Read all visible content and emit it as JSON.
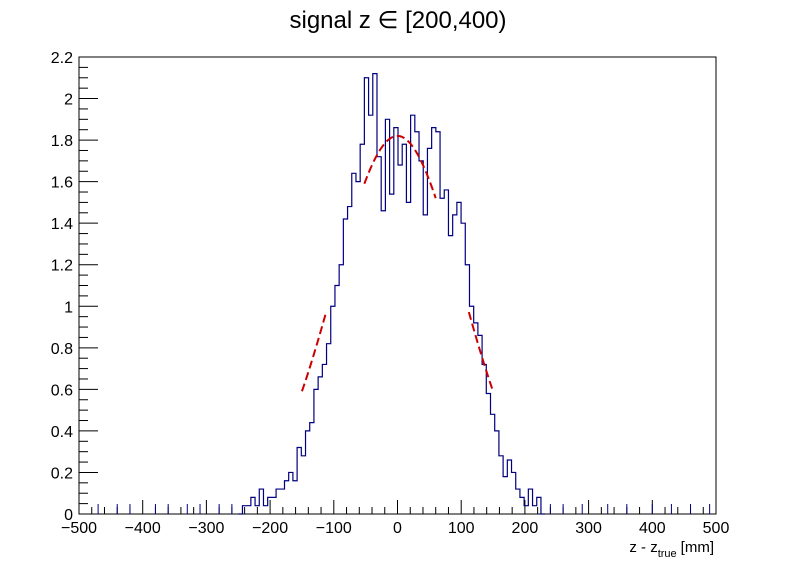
{
  "chart_data": {
    "type": "histogram",
    "title": "signal z ∈ [200,400)",
    "xlabel": {
      "main": "z - z",
      "sub": "true",
      "unit": "[mm]"
    },
    "ylabel": "",
    "xlim": [
      -500,
      500
    ],
    "ylim": [
      0,
      2.2
    ],
    "bin_width": 6.6,
    "xticks": [
      -500,
      -400,
      -300,
      -200,
      -100,
      0,
      100,
      200,
      300,
      400,
      500
    ],
    "xtick_labels": [
      "−500",
      "−400",
      "−300",
      "−200",
      "−100",
      "0",
      "100",
      "200",
      "300",
      "400",
      "500"
    ],
    "yticks": [
      0,
      0.2,
      0.4,
      0.6,
      0.8,
      1,
      1.2,
      1.4,
      1.6,
      1.8,
      2,
      2.2
    ],
    "ytick_labels": [
      "0",
      "0.2",
      "0.4",
      "0.6",
      "0.8",
      "1",
      "1.2",
      "1.4",
      "1.6",
      "1.8",
      "2",
      "2.2"
    ],
    "series": [
      {
        "name": "signal histogram",
        "color": "#000080",
        "bins": [
          [
            -250,
            0.0
          ],
          [
            -243.4,
            0.04
          ],
          [
            -236.8,
            0.04
          ],
          [
            -230.2,
            0.08
          ],
          [
            -223.6,
            0.04
          ],
          [
            -217,
            0.12
          ],
          [
            -210.4,
            0.04
          ],
          [
            -203.8,
            0.08
          ],
          [
            -197.2,
            0.08
          ],
          [
            -190.6,
            0.12
          ],
          [
            -184,
            0.12
          ],
          [
            -177.4,
            0.16
          ],
          [
            -170.8,
            0.2
          ],
          [
            -164.2,
            0.16
          ],
          [
            -157.6,
            0.32
          ],
          [
            -151,
            0.28
          ],
          [
            -144.4,
            0.4
          ],
          [
            -137.8,
            0.44
          ],
          [
            -131.2,
            0.6
          ],
          [
            -124.6,
            0.66
          ],
          [
            -118,
            0.72
          ],
          [
            -111.4,
            0.82
          ],
          [
            -104.8,
            1.0
          ],
          [
            -98.2,
            1.1
          ],
          [
            -91.6,
            1.2
          ],
          [
            -85,
            1.42
          ],
          [
            -78.4,
            1.48
          ],
          [
            -71.8,
            1.64
          ],
          [
            -65.2,
            1.6
          ],
          [
            -58.6,
            1.78
          ],
          [
            -52,
            2.1
          ],
          [
            -45.4,
            1.92
          ],
          [
            -38.8,
            2.12
          ],
          [
            -32.2,
            1.72
          ],
          [
            -25.6,
            1.46
          ],
          [
            -19,
            1.9
          ],
          [
            -12.4,
            1.54
          ],
          [
            -5.8,
            1.86
          ],
          [
            0.8,
            1.68
          ],
          [
            7.4,
            1.78
          ],
          [
            14,
            1.5
          ],
          [
            20.6,
            1.92
          ],
          [
            27.2,
            1.84
          ],
          [
            33.8,
            1.7
          ],
          [
            40.4,
            1.44
          ],
          [
            47,
            1.76
          ],
          [
            53.6,
            1.86
          ],
          [
            60.2,
            1.84
          ],
          [
            66.8,
            1.52
          ],
          [
            73.4,
            1.56
          ],
          [
            80,
            1.34
          ],
          [
            86.6,
            1.44
          ],
          [
            93.2,
            1.5
          ],
          [
            99.8,
            1.4
          ],
          [
            106.4,
            1.2
          ],
          [
            113,
            1.0
          ],
          [
            119.6,
            0.92
          ],
          [
            126.2,
            0.86
          ],
          [
            132.8,
            0.72
          ],
          [
            139.4,
            0.58
          ],
          [
            146,
            0.48
          ],
          [
            152.6,
            0.4
          ],
          [
            159.2,
            0.28
          ],
          [
            165.8,
            0.18
          ],
          [
            172.4,
            0.26
          ],
          [
            179,
            0.2
          ],
          [
            185.6,
            0.12
          ],
          [
            192.2,
            0.08
          ],
          [
            198.8,
            0.04
          ],
          [
            205.4,
            0.12
          ],
          [
            212,
            0.04
          ],
          [
            218.6,
            0.08
          ],
          [
            225.2,
            0.0
          ]
        ]
      },
      {
        "name": "gaussian fit",
        "color": "#cc0000",
        "segments": [
          {
            "from": -150,
            "to": -112,
            "amplitude": 1.82,
            "mean": 0,
            "sigma": 100
          },
          {
            "from": -52,
            "to": 60,
            "amplitude": 1.82,
            "mean": 0,
            "sigma": 100
          },
          {
            "from": 112,
            "to": 150,
            "amplitude": 1.82,
            "mean": 0,
            "sigma": 100
          }
        ]
      }
    ],
    "sparse_markers": [
      -470,
      -440,
      -420,
      -380,
      -360,
      -330,
      -310,
      -280,
      -260,
      240,
      260,
      290,
      330,
      360,
      400,
      430,
      460,
      490
    ]
  }
}
